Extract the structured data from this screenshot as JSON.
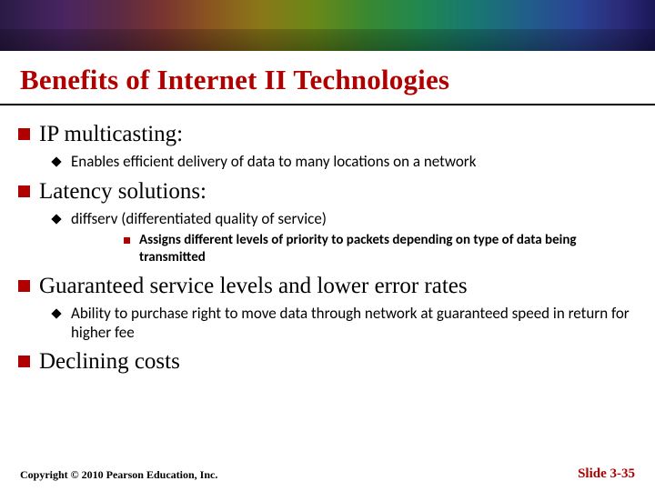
{
  "colors": {
    "accent_red": "#b00000",
    "black": "#000000",
    "background": "#ffffff"
  },
  "title": "Benefits of Internet II Technologies",
  "bullets": {
    "b1": {
      "text": "IP multicasting:",
      "sub1": {
        "text": "Enables efficient delivery of data to many locations on a network"
      }
    },
    "b2": {
      "text": "Latency solutions:",
      "sub1": {
        "text": "diffserv (differentiated quality of service)",
        "subsub1": {
          "text": "Assigns different levels of priority to packets depending on type of data being transmitted"
        }
      }
    },
    "b3": {
      "text": "Guaranteed service levels and lower error rates",
      "sub1": {
        "text": "Ability to purchase right to move data through network at guaranteed speed in return for higher fee"
      }
    },
    "b4": {
      "text": "Declining costs"
    }
  },
  "footer": {
    "copyright": "Copyright © 2010 Pearson Education, Inc.",
    "slide": "Slide 3-35"
  }
}
